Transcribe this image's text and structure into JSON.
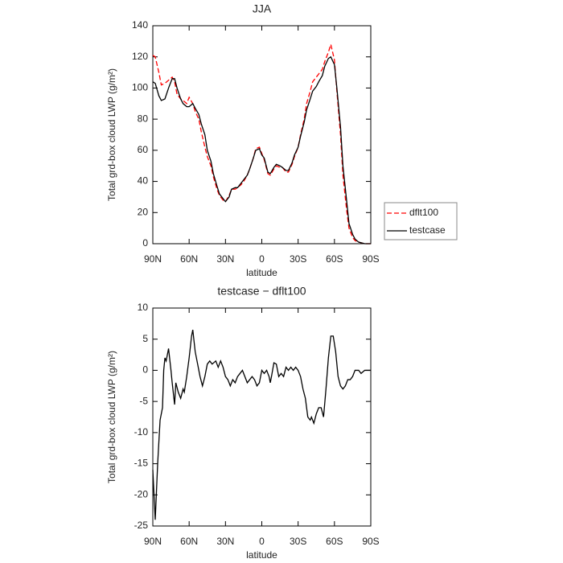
{
  "chart_data": [
    {
      "type": "line",
      "title": "JJA",
      "ylabel": "Total grd-box cloud LWP (g/m²)",
      "xlabel": "latitude",
      "x": [
        90,
        88,
        85,
        83,
        80,
        77,
        74,
        72,
        70,
        67,
        65,
        62,
        60,
        57,
        55,
        52,
        50,
        47,
        45,
        42,
        40,
        37,
        35,
        32,
        30,
        27,
        25,
        22,
        20,
        17,
        15,
        12,
        10,
        7,
        5,
        2,
        0,
        -2,
        -5,
        -7,
        -10,
        -12,
        -15,
        -17,
        -20,
        -22,
        -25,
        -27,
        -30,
        -32,
        -35,
        -37,
        -40,
        -42,
        -45,
        -47,
        -50,
        -52,
        -55,
        -57,
        -60,
        -62,
        -65,
        -67,
        -70,
        -72,
        -75,
        -77,
        -80,
        -85,
        -90
      ],
      "series": [
        {
          "name": "dflt100",
          "color": "#ff0000",
          "linestyle": "dashed",
          "values": [
            121,
            120,
            110,
            102,
            103,
            105,
            107,
            104,
            96,
            93,
            92,
            90,
            94,
            90,
            85,
            80,
            72,
            62,
            56,
            50,
            43,
            35,
            31,
            28,
            27,
            31,
            35,
            35,
            36,
            38,
            40,
            44,
            48,
            55,
            61,
            62,
            58,
            54,
            45,
            44,
            48,
            50,
            49,
            49,
            46,
            46,
            51,
            56,
            62,
            70,
            80,
            90,
            98,
            104,
            107,
            109,
            112,
            117,
            123,
            128,
            118,
            98,
            70,
            44,
            22,
            10,
            4,
            2,
            1,
            0,
            0
          ]
        },
        {
          "name": "testcase",
          "color": "#000000",
          "linestyle": "solid",
          "values": [
            104,
            103,
            95,
            92,
            93,
            100,
            106,
            106,
            100,
            93,
            90,
            88,
            88,
            90,
            87,
            83,
            77,
            70,
            60,
            53,
            45,
            37,
            32,
            29,
            27,
            30,
            35,
            36,
            36,
            39,
            41,
            44,
            48,
            55,
            60,
            61,
            57,
            55,
            46,
            45,
            49,
            51,
            50,
            49,
            47,
            47,
            52,
            57,
            62,
            69,
            78,
            86,
            93,
            98,
            101,
            104,
            108,
            114,
            119,
            120,
            115,
            100,
            75,
            50,
            28,
            13,
            6,
            3,
            1,
            0,
            0
          ]
        }
      ],
      "xlim": [
        90,
        -90
      ],
      "xticks": [
        {
          "value": 90,
          "label": "90N"
        },
        {
          "value": 60,
          "label": "60N"
        },
        {
          "value": 30,
          "label": "30N"
        },
        0,
        {
          "value": -30,
          "label": "30S"
        },
        {
          "value": -60,
          "label": "60S"
        },
        {
          "value": -90,
          "label": "90S"
        }
      ],
      "ylim": [
        0,
        140
      ],
      "yticks": [
        0,
        20,
        40,
        60,
        80,
        100,
        120,
        140
      ],
      "legend": "right"
    },
    {
      "type": "line",
      "title": "testcase − dflt100",
      "ylabel": "Total grd-box cloud LWP (g/m²)",
      "xlabel": "latitude",
      "x": [
        90,
        88,
        86,
        84,
        82,
        81,
        80,
        79,
        77,
        75,
        74,
        72,
        71,
        69,
        67,
        65,
        64,
        62,
        60,
        58,
        57,
        55,
        53,
        51,
        49,
        47,
        45,
        43,
        41,
        38,
        36,
        34,
        32,
        30,
        28,
        26,
        24,
        22,
        20,
        18,
        16,
        14,
        12,
        10,
        8,
        6,
        4,
        2,
        0,
        -2,
        -4,
        -6,
        -7,
        -8,
        -10,
        -12,
        -14,
        -16,
        -18,
        -20,
        -22,
        -24,
        -26,
        -28,
        -30,
        -32,
        -34,
        -36,
        -38,
        -40,
        -41,
        -43,
        -45,
        -47,
        -49,
        -51,
        -53,
        -55,
        -57,
        -59,
        -61,
        -63,
        -65,
        -67,
        -69,
        -71,
        -73,
        -75,
        -77,
        -80,
        -82,
        -85,
        -90
      ],
      "series": [
        {
          "name": "testcase − dflt100",
          "color": "#000000",
          "linestyle": "solid",
          "values": [
            -16,
            -24,
            -15,
            -8,
            -6,
            0,
            2,
            1.5,
            3.5,
            0,
            -2,
            -5.5,
            -2,
            -3.5,
            -4.5,
            -3,
            -3.5,
            -1,
            2,
            5.5,
            6.5,
            3,
            1,
            -1,
            -2.5,
            -1,
            1,
            1.5,
            1,
            1.5,
            0.5,
            1.5,
            0.5,
            -1,
            -1.5,
            -2.5,
            -1.5,
            -2,
            -1,
            -0.5,
            0,
            -1,
            -2,
            -1.5,
            -1,
            -1.5,
            -2.5,
            -2,
            0,
            -0.5,
            0,
            -1,
            -2,
            -1,
            1.2,
            1,
            -1,
            -0.5,
            -1,
            0.5,
            0,
            0.5,
            0,
            0.5,
            0,
            -1,
            -3,
            -4.5,
            -7.5,
            -8,
            -7.5,
            -8.5,
            -7,
            -6,
            -6,
            -7.5,
            -3,
            2,
            5.5,
            5.5,
            3,
            -1,
            -2.5,
            -3,
            -2.5,
            -1.5,
            -1.5,
            -1,
            0,
            0,
            -0.5,
            0,
            0
          ]
        }
      ],
      "xlim": [
        90,
        -90
      ],
      "xticks": [
        {
          "value": 90,
          "label": "90N"
        },
        {
          "value": 60,
          "label": "60N"
        },
        {
          "value": 30,
          "label": "30N"
        },
        0,
        {
          "value": -30,
          "label": "30S"
        },
        {
          "value": -60,
          "label": "60S"
        },
        {
          "value": -90,
          "label": "90S"
        }
      ],
      "ylim": [
        -25,
        10
      ],
      "yticks": [
        -25,
        -20,
        -15,
        -10,
        -5,
        0,
        5,
        10
      ]
    }
  ]
}
